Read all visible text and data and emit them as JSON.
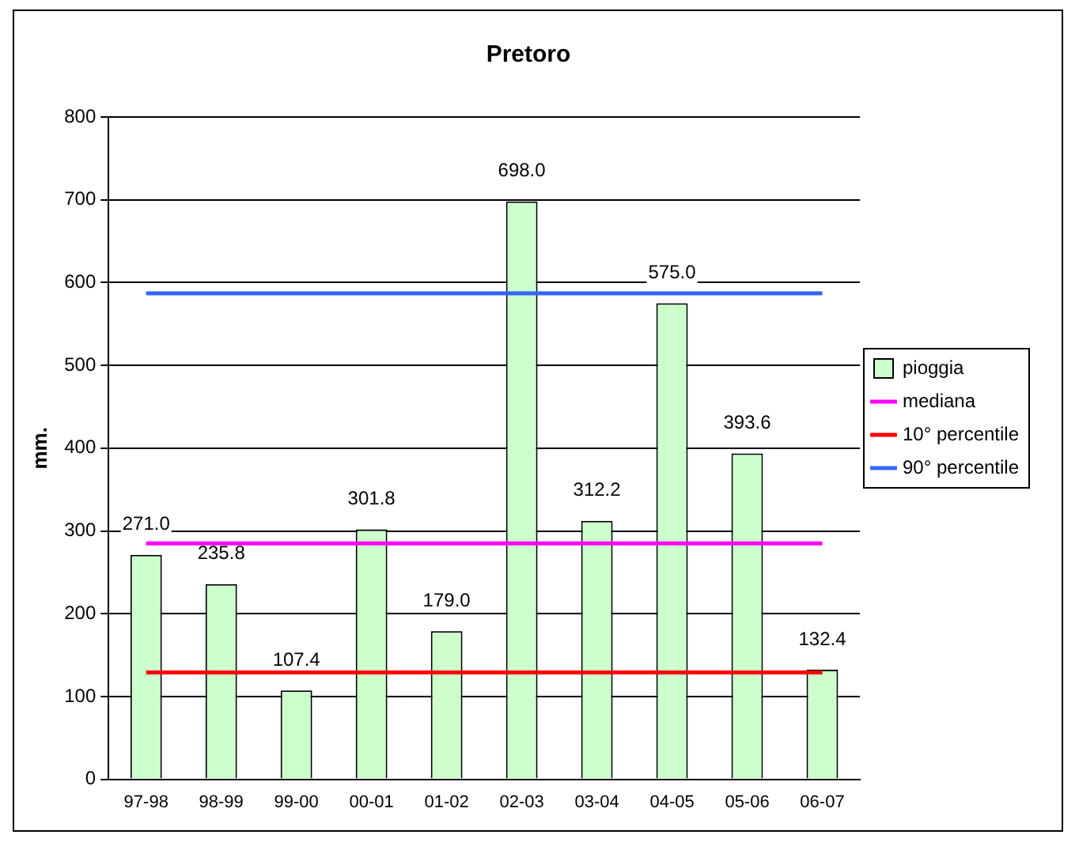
{
  "chart_data": {
    "type": "bar",
    "title": "Pretoro",
    "ylabel": "mm.",
    "categories": [
      "97-98",
      "98-99",
      "99-00",
      "00-01",
      "01-02",
      "02-03",
      "03-04",
      "04-05",
      "05-06",
      "06-07"
    ],
    "series": [
      {
        "name": "pioggia",
        "color": "#ccffcc",
        "values": [
          271.0,
          235.8,
          107.4,
          301.8,
          179.0,
          698.0,
          312.2,
          575.0,
          393.6,
          132.4
        ],
        "value_labels": [
          "271.0",
          "235.8",
          "107.4",
          "301.8",
          "179.0",
          "698.0",
          "312.2",
          "575.0",
          "393.6",
          "132.4"
        ]
      },
      {
        "name": "mediana",
        "type": "line",
        "color": "#ff00ff",
        "values": [
          285,
          285,
          285,
          285,
          285,
          285,
          285,
          285,
          285,
          285
        ]
      },
      {
        "name": "10° percentile",
        "type": "line",
        "color": "#ff0000",
        "values": [
          129,
          129,
          129,
          129,
          129,
          129,
          129,
          129,
          129,
          129
        ]
      },
      {
        "name": "90° percentile",
        "type": "line",
        "color": "#3366ff",
        "values": [
          587,
          587,
          587,
          587,
          587,
          587,
          587,
          587,
          587,
          587
        ]
      }
    ],
    "ylim": [
      0,
      800
    ],
    "yticks": [
      0,
      100,
      200,
      300,
      400,
      500,
      600,
      700,
      800
    ],
    "grid": "y",
    "legend": "right",
    "marker": "none"
  }
}
